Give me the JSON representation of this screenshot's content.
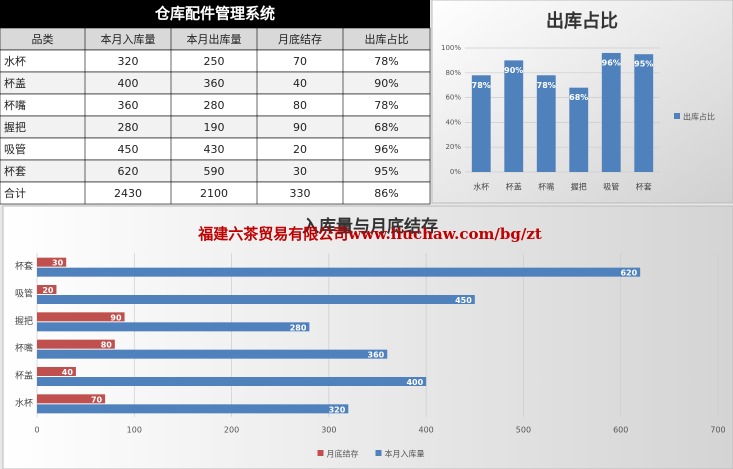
{
  "table": {
    "title": "仓库配件管理系统",
    "header": [
      "品类",
      "本月入库量",
      "本月出库量",
      "月底结存",
      "出库占比"
    ],
    "rows": [
      [
        "水杯",
        320,
        250,
        70,
        "78%"
      ],
      [
        "杯盖",
        400,
        360,
        40,
        "90%"
      ],
      [
        "杯嘴",
        360,
        280,
        80,
        "78%"
      ],
      [
        "握把",
        280,
        190,
        90,
        "68%"
      ],
      [
        "吸管",
        450,
        430,
        20,
        "96%"
      ],
      [
        "杯套",
        620,
        590,
        30,
        "95%"
      ],
      [
        "合计",
        2430,
        2100,
        330,
        "86%"
      ]
    ]
  },
  "chart_data": [
    {
      "type": "bar",
      "orientation": "vertical",
      "title": "出库占比",
      "categories": [
        "水杯",
        "杯盖",
        "杯嘴",
        "握把",
        "吸管",
        "杯套"
      ],
      "series": [
        {
          "name": "出库占比",
          "color": "#4f81bd",
          "values": [
            78,
            90,
            78,
            68,
            96,
            95
          ],
          "value_labels": [
            "78%",
            "90%",
            "78%",
            "68%",
            "96%",
            "95%"
          ]
        }
      ],
      "ylim": [
        0,
        100
      ],
      "yticks": [
        {
          "value": 0,
          "label": "0%"
        },
        {
          "value": 20,
          "label": "20%"
        },
        {
          "value": 40,
          "label": "40%"
        },
        {
          "value": 60,
          "label": "60%"
        },
        {
          "value": 80,
          "label": "80%"
        },
        {
          "value": 100,
          "label": "100%"
        }
      ],
      "grid": true,
      "legend": "right"
    },
    {
      "type": "bar",
      "orientation": "horizontal",
      "title": "入库量与月底结存",
      "annotation": "福建六茶贸易有限公司www.liuchaw.com/bg/zt",
      "categories": [
        "水杯",
        "杯盖",
        "杯嘴",
        "握把",
        "吸管",
        "杯套"
      ],
      "series": [
        {
          "name": "月底结存",
          "color": "#c0504d",
          "values": [
            70,
            40,
            80,
            90,
            20,
            30
          ]
        },
        {
          "name": "本月入库量",
          "color": "#4f81bd",
          "values": [
            320,
            400,
            360,
            280,
            450,
            620
          ]
        }
      ],
      "xlim": [
        0,
        700
      ],
      "xticks": [
        0,
        100,
        200,
        300,
        400,
        500,
        600,
        700
      ],
      "grid": true,
      "legend": "bottom"
    }
  ]
}
